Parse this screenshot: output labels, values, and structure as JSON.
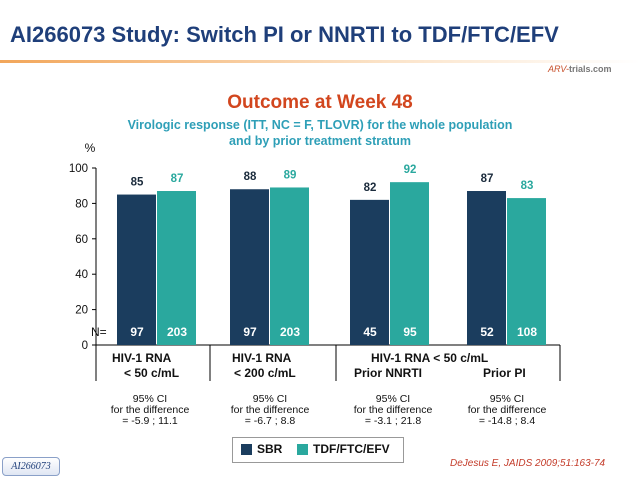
{
  "slide_title": "AI266073 Study: Switch PI or NNRTI to TDF/FTC/EFV",
  "logo_text": "ARV-",
  "logo_text2": "trials.com",
  "headline": "Outcome at Week 48",
  "subtitle_line1": "Virologic response (ITT, NC = F, TLOVR) for the whole population",
  "subtitle_line2": "and by prior treatment stratum",
  "colors": {
    "sbr": "#1b3d5e",
    "tdf": "#2aa89e",
    "title": "#1f3f7a",
    "headline": "#d2461e",
    "subtitle": "#2e9fb7"
  },
  "chart_data": {
    "type": "bar",
    "ylabel": "%",
    "ylim": [
      0,
      100
    ],
    "yticks": [
      0,
      20,
      40,
      60,
      80,
      100
    ],
    "categories": [
      [
        "HIV-1 RNA",
        "< 50 c/mL"
      ],
      [
        "HIV-1 RNA",
        "< 200 c/mL"
      ],
      [
        "Prior NNRTI"
      ],
      [
        "Prior PI"
      ]
    ],
    "group_header": "HIV-1 RNA < 50 c/mL",
    "series": [
      {
        "name": "SBR",
        "values": [
          85,
          88,
          82,
          87
        ],
        "n": [
          97,
          97,
          45,
          52
        ]
      },
      {
        "name": "TDF/FTC/EFV",
        "values": [
          87,
          89,
          92,
          83
        ],
        "n": [
          203,
          203,
          95,
          108
        ]
      }
    ],
    "n_label": "N=",
    "ci_title": [
      "95% CI",
      "for the difference"
    ],
    "ci_values": [
      "= -5.9 ; 11.1",
      "= -6.7 ; 8.8",
      "= -3.1 ; 21.8",
      "= -14.8 ; 8.4"
    ],
    "legend_position": "bottom"
  },
  "footer_tag": "AI266073",
  "citation": "DeJesus E, JAIDS 2009;51:163-74"
}
